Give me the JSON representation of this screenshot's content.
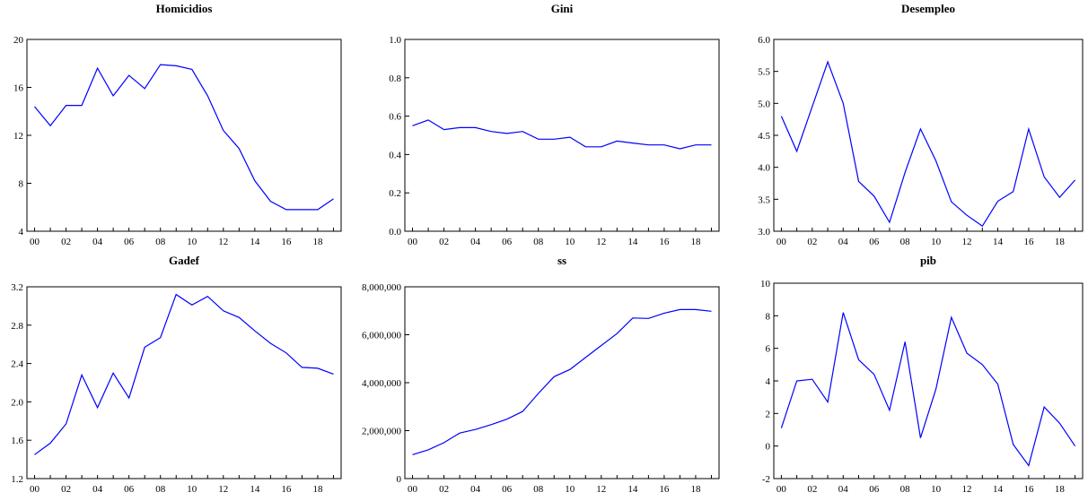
{
  "colors": {
    "line": "#0000ff",
    "axis": "#000000",
    "background": "#ffffff"
  },
  "chart_data": [
    {
      "type": "line",
      "title": "Homicidios",
      "xlabel": "",
      "ylabel": "",
      "x_tick_labels": [
        "00",
        "02",
        "04",
        "06",
        "08",
        "10",
        "12",
        "14",
        "16",
        "18"
      ],
      "y_ticks": [
        "4",
        "8",
        "12",
        "16",
        "20"
      ],
      "ylim": [
        4,
        20
      ],
      "x": [
        2000,
        2001,
        2002,
        2003,
        2004,
        2005,
        2006,
        2007,
        2008,
        2009,
        2010,
        2011,
        2012,
        2013,
        2014,
        2015,
        2016,
        2017,
        2018,
        2019
      ],
      "series": [
        {
          "values": [
            14.4,
            12.8,
            14.5,
            14.5,
            17.6,
            15.3,
            17.0,
            15.9,
            17.9,
            17.8,
            17.5,
            15.3,
            12.4,
            10.9,
            8.2,
            6.5,
            5.8,
            5.8,
            5.8,
            6.7
          ]
        }
      ],
      "grid": false
    },
    {
      "type": "line",
      "title": "Gini",
      "xlabel": "",
      "ylabel": "",
      "x_tick_labels": [
        "00",
        "02",
        "04",
        "06",
        "08",
        "10",
        "12",
        "14",
        "16",
        "18"
      ],
      "y_ticks": [
        "0.0",
        "0.2",
        "0.4",
        "0.6",
        "0.8",
        "1.0"
      ],
      "ylim": [
        0.0,
        1.0
      ],
      "x": [
        2000,
        2001,
        2002,
        2003,
        2004,
        2005,
        2006,
        2007,
        2008,
        2009,
        2010,
        2011,
        2012,
        2013,
        2014,
        2015,
        2016,
        2017,
        2018,
        2019
      ],
      "series": [
        {
          "values": [
            0.55,
            0.58,
            0.53,
            0.54,
            0.54,
            0.52,
            0.51,
            0.52,
            0.48,
            0.48,
            0.49,
            0.44,
            0.44,
            0.47,
            0.46,
            0.45,
            0.45,
            0.43,
            0.45,
            0.45
          ]
        }
      ],
      "grid": false
    },
    {
      "type": "line",
      "title": "Desempleo",
      "xlabel": "",
      "ylabel": "",
      "x_tick_labels": [
        "00",
        "02",
        "04",
        "06",
        "08",
        "10",
        "12",
        "14",
        "16",
        "18"
      ],
      "y_ticks": [
        "3.0",
        "3.5",
        "4.0",
        "4.5",
        "5.0",
        "5.5",
        "6.0"
      ],
      "ylim": [
        3.0,
        6.0
      ],
      "x": [
        2000,
        2001,
        2002,
        2003,
        2004,
        2005,
        2006,
        2007,
        2008,
        2009,
        2010,
        2011,
        2012,
        2013,
        2014,
        2015,
        2016,
        2017,
        2018,
        2019
      ],
      "series": [
        {
          "values": [
            4.8,
            4.25,
            4.95,
            5.65,
            5.0,
            3.78,
            3.55,
            3.14,
            3.92,
            4.6,
            4.1,
            3.46,
            3.25,
            3.08,
            3.47,
            3.62,
            4.6,
            3.85,
            3.53,
            3.8
          ]
        }
      ],
      "grid": false
    },
    {
      "type": "line",
      "title": "Gadef",
      "xlabel": "",
      "ylabel": "",
      "x_tick_labels": [
        "00",
        "02",
        "04",
        "06",
        "08",
        "10",
        "12",
        "14",
        "16",
        "18"
      ],
      "y_ticks": [
        "1.2",
        "1.6",
        "2.0",
        "2.4",
        "2.8",
        "3.2"
      ],
      "ylim": [
        1.2,
        3.2
      ],
      "x": [
        2000,
        2001,
        2002,
        2003,
        2004,
        2005,
        2006,
        2007,
        2008,
        2009,
        2010,
        2011,
        2012,
        2013,
        2014,
        2015,
        2016,
        2017,
        2018,
        2019
      ],
      "series": [
        {
          "values": [
            1.45,
            1.57,
            1.77,
            2.28,
            1.94,
            2.3,
            2.04,
            2.57,
            2.67,
            3.12,
            3.01,
            3.1,
            2.95,
            2.88,
            2.74,
            2.61,
            2.51,
            2.36,
            2.35,
            2.29
          ]
        }
      ],
      "grid": false
    },
    {
      "type": "line",
      "title": "ss",
      "xlabel": "",
      "ylabel": "",
      "x_tick_labels": [
        "00",
        "02",
        "04",
        "06",
        "08",
        "10",
        "12",
        "14",
        "16",
        "18"
      ],
      "y_ticks": [
        "0",
        "2,000,000",
        "4,000,000",
        "6,000,000",
        "8,000,000"
      ],
      "ylim": [
        0,
        8000000
      ],
      "x": [
        2000,
        2001,
        2002,
        2003,
        2004,
        2005,
        2006,
        2007,
        2008,
        2009,
        2010,
        2011,
        2012,
        2013,
        2014,
        2015,
        2016,
        2017,
        2018,
        2019
      ],
      "series": [
        {
          "values": [
            1000000,
            1200000,
            1500000,
            1900000,
            2050000,
            2250000,
            2480000,
            2800000,
            3550000,
            4250000,
            4550000,
            5050000,
            5550000,
            6050000,
            6700000,
            6680000,
            6900000,
            7050000,
            7050000,
            6980000
          ]
        }
      ],
      "grid": false
    },
    {
      "type": "line",
      "title": "pib",
      "xlabel": "",
      "ylabel": "",
      "x_tick_labels": [
        "00",
        "02",
        "04",
        "06",
        "08",
        "10",
        "12",
        "14",
        "16",
        "18"
      ],
      "y_ticks": [
        "-2",
        "0",
        "2",
        "4",
        "6",
        "8",
        "10"
      ],
      "ylim": [
        -2,
        10
      ],
      "x": [
        2000,
        2001,
        2002,
        2003,
        2004,
        2005,
        2006,
        2007,
        2008,
        2009,
        2010,
        2011,
        2012,
        2013,
        2014,
        2015,
        2016,
        2017,
        2018,
        2019
      ],
      "series": [
        {
          "values": [
            1.1,
            4.0,
            4.1,
            2.7,
            8.2,
            5.3,
            4.4,
            2.2,
            6.4,
            0.5,
            3.5,
            7.9,
            5.7,
            5.0,
            3.8,
            0.1,
            -1.2,
            2.4,
            1.4,
            0.0
          ]
        }
      ],
      "grid": false
    }
  ]
}
